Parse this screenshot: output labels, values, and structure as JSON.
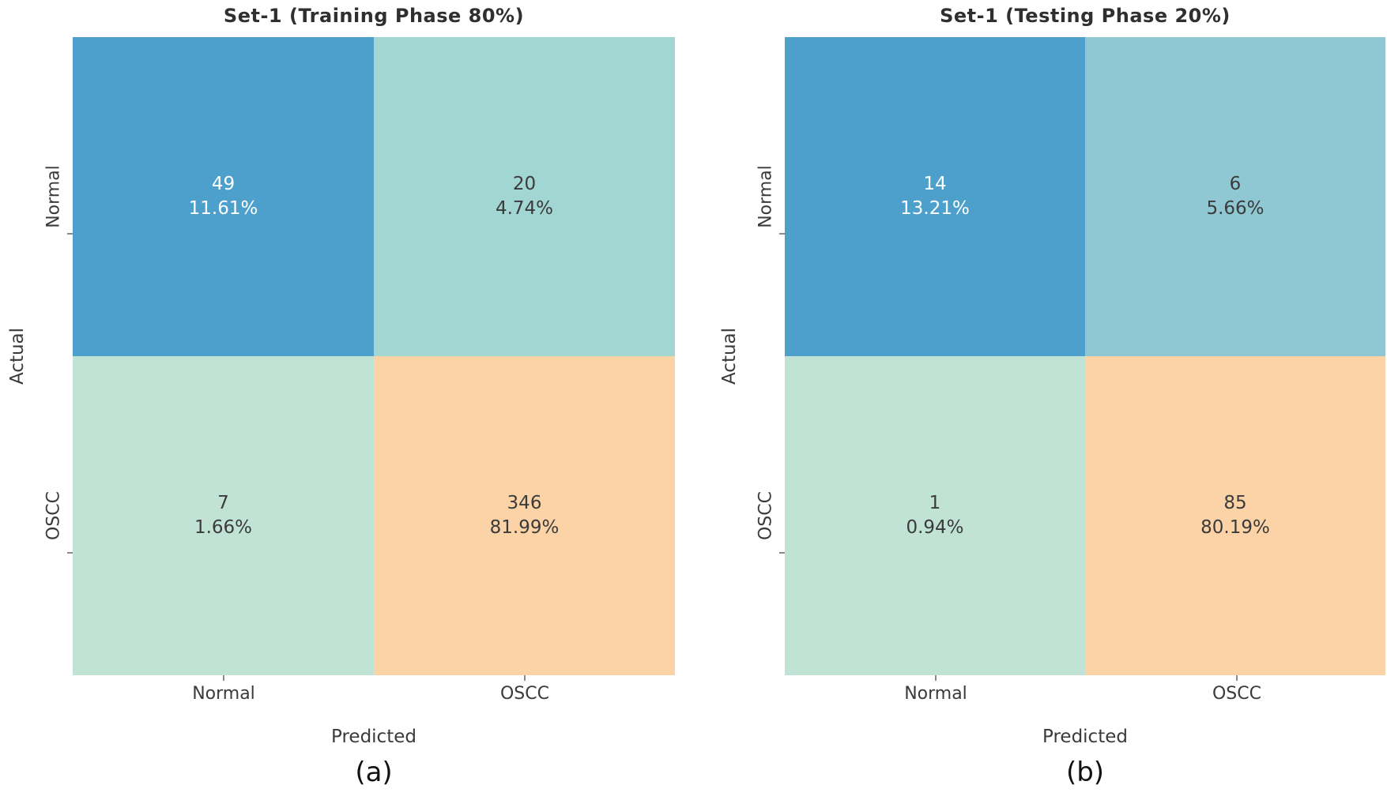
{
  "figure": {
    "panels": [
      {
        "id": "a",
        "title": "Set-1 (Training Phase 80%)",
        "caption": "(a)",
        "xlabel": "Predicted",
        "ylabel": "Actual",
        "x_ticks": [
          "Normal",
          "OSCC"
        ],
        "y_ticks": [
          "Normal",
          "OSCC"
        ],
        "cells": [
          {
            "actual": "Normal",
            "predicted": "Normal",
            "count": "49",
            "percent": "11.61%",
            "bg": "#4da0cb",
            "fg": "#ffffff"
          },
          {
            "actual": "Normal",
            "predicted": "OSCC",
            "count": "20",
            "percent": "4.74%",
            "bg": "#a2d6d3",
            "fg": "#3b3b3b"
          },
          {
            "actual": "OSCC",
            "predicted": "Normal",
            "count": "7",
            "percent": "1.66%",
            "bg": "#c1e3d6",
            "fg": "#3b3b3b"
          },
          {
            "actual": "OSCC",
            "predicted": "OSCC",
            "count": "346",
            "percent": "81.99%",
            "bg": "#fbd3a7",
            "fg": "#3b3b3b"
          }
        ]
      },
      {
        "id": "b",
        "title": "Set-1 (Testing Phase 20%)",
        "caption": "(b)",
        "xlabel": "Predicted",
        "ylabel": "Actual",
        "x_ticks": [
          "Normal",
          "OSCC"
        ],
        "y_ticks": [
          "Normal",
          "OSCC"
        ],
        "cells": [
          {
            "actual": "Normal",
            "predicted": "Normal",
            "count": "14",
            "percent": "13.21%",
            "bg": "#4da0cb",
            "fg": "#ffffff"
          },
          {
            "actual": "Normal",
            "predicted": "OSCC",
            "count": "6",
            "percent": "5.66%",
            "bg": "#8fc8d2",
            "fg": "#3b3b3b"
          },
          {
            "actual": "OSCC",
            "predicted": "Normal",
            "count": "1",
            "percent": "0.94%",
            "bg": "#c1e3d6",
            "fg": "#3b3b3b"
          },
          {
            "actual": "OSCC",
            "predicted": "OSCC",
            "count": "85",
            "percent": "80.19%",
            "bg": "#fbd3a7",
            "fg": "#3b3b3b"
          }
        ]
      }
    ]
  },
  "chart_data": [
    {
      "type": "heatmap",
      "title": "Set-1 (Training Phase 80%)",
      "caption": "(a)",
      "xlabel": "Predicted",
      "ylabel": "Actual",
      "x_categories": [
        "Normal",
        "OSCC"
      ],
      "y_categories": [
        "Normal",
        "OSCC"
      ],
      "values": [
        [
          49,
          20
        ],
        [
          7,
          346
        ]
      ],
      "percent_labels": [
        [
          "11.61%",
          "4.74%"
        ],
        [
          "1.66%",
          "81.99%"
        ]
      ],
      "cell_colors": [
        [
          "#4da0cb",
          "#a2d6d3"
        ],
        [
          "#c1e3d6",
          "#fbd3a7"
        ]
      ],
      "legend": "none",
      "grid": false
    },
    {
      "type": "heatmap",
      "title": "Set-1 (Testing Phase 20%)",
      "caption": "(b)",
      "xlabel": "Predicted",
      "ylabel": "Actual",
      "x_categories": [
        "Normal",
        "OSCC"
      ],
      "y_categories": [
        "Normal",
        "OSCC"
      ],
      "values": [
        [
          14,
          6
        ],
        [
          1,
          85
        ]
      ],
      "percent_labels": [
        [
          "13.21%",
          "5.66%"
        ],
        [
          "0.94%",
          "80.19%"
        ]
      ],
      "cell_colors": [
        [
          "#4da0cb",
          "#8fc8d2"
        ],
        [
          "#c1e3d6",
          "#fbd3a7"
        ]
      ],
      "legend": "none",
      "grid": false
    }
  ]
}
